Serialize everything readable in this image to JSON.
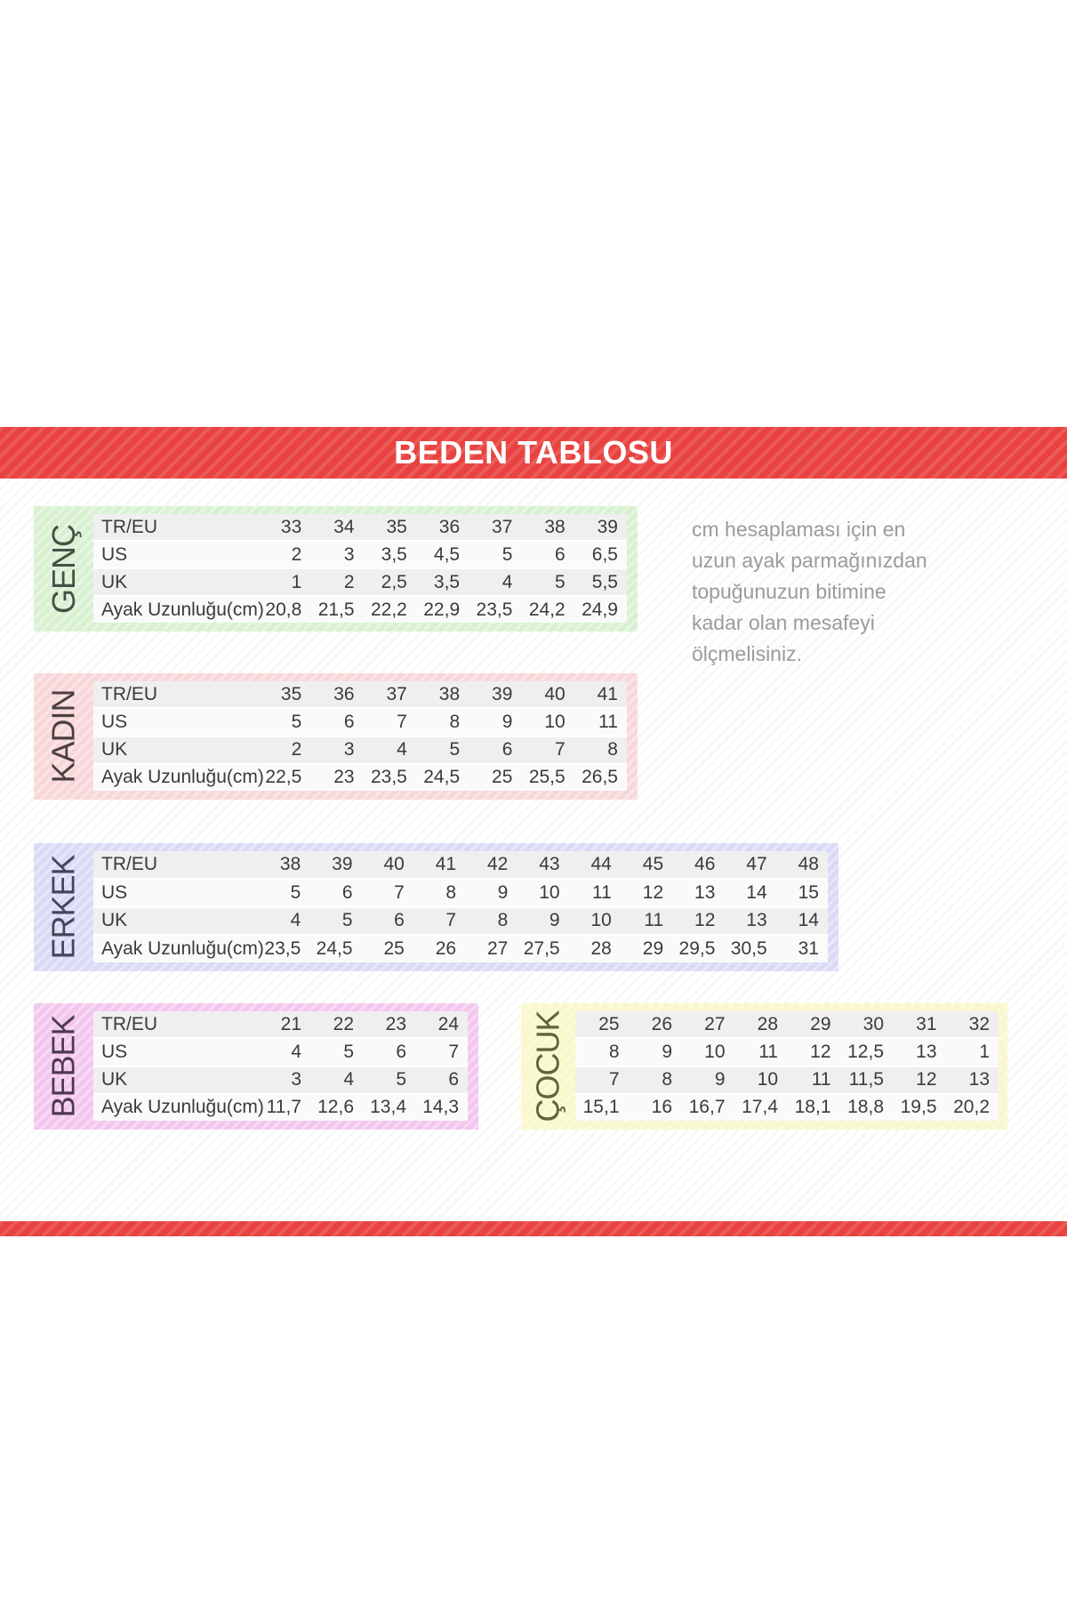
{
  "banner": {
    "title": "BEDEN TABLOSU",
    "color": "#e84340"
  },
  "note": {
    "text": "cm hesaplaması için en\nuzun ayak parmağınızdan\ntopuğunuzun bitimine\nkadar olan mesafeyi\nölçmelisiniz."
  },
  "measure": {
    "label": "cm"
  },
  "row_headers": [
    "TR/EU",
    "US",
    "UK",
    "Ayak Uzunluğu(cm)"
  ],
  "tables": [
    {
      "id": "genc",
      "label": "GENÇ",
      "bg": "#d8f1d1",
      "label_color": "#465046",
      "show_row_headers": true,
      "rows": [
        [
          "33",
          "34",
          "35",
          "36",
          "37",
          "38",
          "39"
        ],
        [
          "2",
          "3",
          "3,5",
          "4,5",
          "5",
          "6",
          "6,5"
        ],
        [
          "1",
          "2",
          "2,5",
          "3,5",
          "4",
          "5",
          "5,5"
        ],
        [
          "20,8",
          "21,5",
          "22,2",
          "22,9",
          "23,5",
          "24,2",
          "24,9"
        ]
      ]
    },
    {
      "id": "kadin",
      "label": "KADIN",
      "bg": "#f8d7d8",
      "label_color": "#4a3f41",
      "show_row_headers": true,
      "rows": [
        [
          "35",
          "36",
          "37",
          "38",
          "39",
          "40",
          "41"
        ],
        [
          "5",
          "6",
          "7",
          "8",
          "9",
          "10",
          "11"
        ],
        [
          "2",
          "3",
          "4",
          "5",
          "6",
          "7",
          "8"
        ],
        [
          "22,5",
          "23",
          "23,5",
          "24,5",
          "25",
          "25,5",
          "26,5"
        ]
      ]
    },
    {
      "id": "erkek",
      "label": "ERKEK",
      "bg": "#d9dbf6",
      "label_color": "#45455a",
      "show_row_headers": true,
      "rows": [
        [
          "38",
          "39",
          "40",
          "41",
          "42",
          "43",
          "44",
          "45",
          "46",
          "47",
          "48"
        ],
        [
          "5",
          "6",
          "7",
          "8",
          "9",
          "10",
          "11",
          "12",
          "13",
          "14",
          "15"
        ],
        [
          "4",
          "5",
          "6",
          "7",
          "8",
          "9",
          "10",
          "11",
          "12",
          "13",
          "14"
        ],
        [
          "23,5",
          "24,5",
          "25",
          "26",
          "27",
          "27,5",
          "28",
          "29",
          "29,5",
          "30,5",
          "31"
        ]
      ]
    },
    {
      "id": "bebek",
      "label": "BEBEK",
      "bg": "#f3c6ee",
      "label_color": "#4d3950",
      "show_row_headers": true,
      "rows": [
        [
          "21",
          "22",
          "23",
          "24"
        ],
        [
          "4",
          "5",
          "6",
          "7"
        ],
        [
          "3",
          "4",
          "5",
          "6"
        ],
        [
          "11,7",
          "12,6",
          "13,4",
          "14,3"
        ]
      ]
    },
    {
      "id": "cocuk",
      "label": "ÇOCUK",
      "bg": "#f8f8cb",
      "label_color": "#62623c",
      "show_row_headers": false,
      "rows": [
        [
          "25",
          "26",
          "27",
          "28",
          "29",
          "30",
          "31",
          "32"
        ],
        [
          "8",
          "9",
          "10",
          "11",
          "12",
          "12,5",
          "13",
          "1"
        ],
        [
          "7",
          "8",
          "9",
          "10",
          "11",
          "11,5",
          "12",
          "13"
        ],
        [
          "15,1",
          "16",
          "16,7",
          "17,4",
          "18,1",
          "18,8",
          "19,5",
          "20,2"
        ]
      ]
    }
  ]
}
